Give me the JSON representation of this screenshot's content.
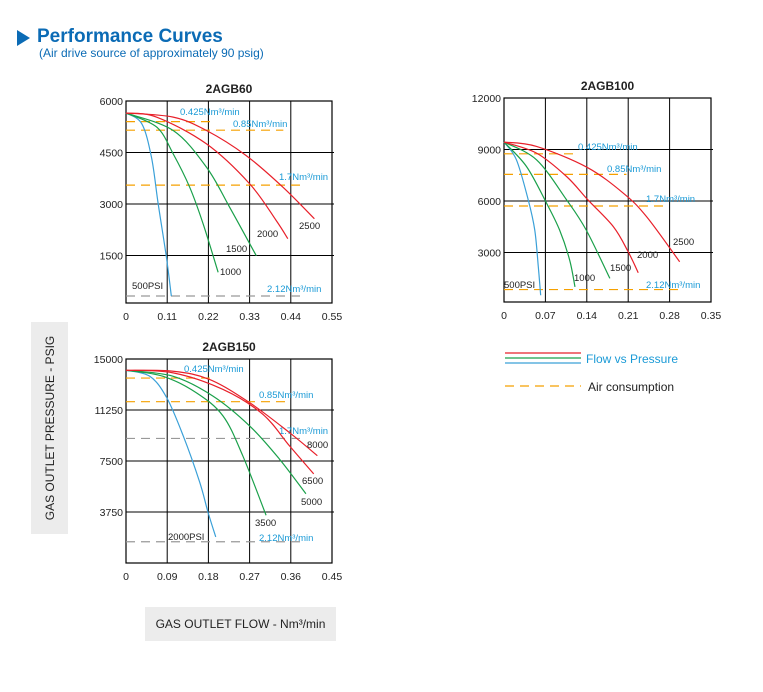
{
  "header": {
    "title": "Performance Curves",
    "subtitle": "(Air drive source of approximately 90 psig)",
    "icon": "triangle-right-icon"
  },
  "axis_labels": {
    "y": "GAS OUTLET PRESSURE - PSIG",
    "x": "GAS OUTLET FLOW - Nm³/min"
  },
  "legend": {
    "flow_label": "Flow vs Pressure",
    "air_label": "Air consumption"
  },
  "colors": {
    "brand": "#0b6bb5",
    "red": "#e8202a",
    "green": "#1aa04a",
    "blue": "#3aa0d8",
    "orange": "#f5a000",
    "gray": "#999999",
    "label_blue": "#1a9ad6"
  },
  "chart_data": [
    {
      "type": "line",
      "title": "2AGB60",
      "xlim": [
        0,
        0.55
      ],
      "ylim": [
        0,
        6000
      ],
      "grid": true,
      "xticks": [
        "0",
        "0.11",
        "0.22",
        "0.33",
        "0.44",
        "0.55"
      ],
      "yticks": [
        "1500",
        "3000",
        "4500",
        "6000"
      ],
      "series": [
        {
          "name": "500PSI",
          "color": "blue",
          "x": [
            0,
            0.042,
            0.068,
            0.086,
            0.108,
            0.121
          ],
          "y": [
            5650,
            5340,
            4360,
            3000,
            1440,
            320
          ]
        },
        {
          "name": "1000",
          "color": "green",
          "x": [
            0,
            0.082,
            0.126,
            0.17,
            0.206,
            0.246
          ],
          "y": [
            5650,
            5240,
            4460,
            3490,
            2420,
            1010
          ]
        },
        {
          "name": "1500",
          "color": "green",
          "x": [
            0,
            0.126,
            0.215,
            0.277,
            0.348
          ],
          "y": [
            5650,
            5140,
            4070,
            2900,
            1490
          ]
        },
        {
          "name": "2000",
          "color": "red",
          "x": [
            0,
            0.082,
            0.215,
            0.33,
            0.401,
            0.432
          ],
          "y": [
            5650,
            5530,
            4750,
            3590,
            2520,
            1990
          ]
        },
        {
          "name": "2500",
          "color": "red",
          "x": [
            0,
            0.126,
            0.215,
            0.321,
            0.419,
            0.503
          ],
          "y": [
            5650,
            5530,
            5140,
            4410,
            3490,
            2570
          ]
        }
      ],
      "air_lines": [
        {
          "name": "0.425Nm³/min",
          "y": 5400,
          "x_end": 0.232,
          "color": "orange"
        },
        {
          "name": "0.85Nm³/min",
          "y": 5150,
          "x_end": 0.42,
          "color": "orange"
        },
        {
          "name": "1.7Nm³/min",
          "y": 3550,
          "x_end": 0.476,
          "color": "orange"
        },
        {
          "name": "2.12Nm³/min",
          "y": 320,
          "x_end": 0.476,
          "color": "gray"
        }
      ]
    },
    {
      "type": "line",
      "title": "2AGB100",
      "xlim": [
        0,
        0.35
      ],
      "ylim": [
        0,
        12000
      ],
      "grid": true,
      "xticks": [
        "0",
        "0.07",
        "0.14",
        "0.21",
        "0.28",
        "0.35"
      ],
      "yticks": [
        "3000",
        "6000",
        "9000",
        "12000"
      ],
      "series": [
        {
          "name": "500PSI",
          "color": "blue",
          "x": [
            0,
            0.021,
            0.041,
            0.052,
            0.058,
            0.062
          ],
          "y": [
            9430,
            8400,
            6060,
            4310,
            2170,
            510
          ]
        },
        {
          "name": "1000",
          "color": "green",
          "x": [
            0,
            0.038,
            0.072,
            0.094,
            0.111,
            0.12
          ],
          "y": [
            9430,
            8010,
            5870,
            4310,
            2560,
            1000
          ]
        },
        {
          "name": "1500",
          "color": "green",
          "x": [
            0,
            0.055,
            0.106,
            0.139,
            0.179
          ],
          "y": [
            9430,
            8400,
            6060,
            4310,
            1490
          ]
        },
        {
          "name": "2000",
          "color": "red",
          "x": [
            0,
            0.055,
            0.106,
            0.142,
            0.185,
            0.21,
            0.227
          ],
          "y": [
            9430,
            8790,
            7420,
            6060,
            4500,
            3040,
            1820
          ]
        },
        {
          "name": "2500",
          "color": "red",
          "x": [
            0,
            0.055,
            0.14,
            0.202,
            0.241,
            0.297
          ],
          "y": [
            9430,
            9180,
            7970,
            6450,
            5090,
            2460
          ]
        }
      ],
      "air_lines": [
        {
          "name": "0.425Nm³/min",
          "y": 8750,
          "x_end": 0.12,
          "color": "orange"
        },
        {
          "name": "0.85Nm³/min",
          "y": 7550,
          "x_end": 0.207,
          "color": "orange"
        },
        {
          "name": "1.7Nm³/min",
          "y": 5710,
          "x_end": 0.269,
          "color": "orange"
        },
        {
          "name": "2.12Nm³/min",
          "y": 840,
          "x_end": 0.303,
          "color": "orange"
        }
      ]
    },
    {
      "type": "line",
      "title": "2AGB150",
      "xlim": [
        0,
        0.45
      ],
      "ylim": [
        0,
        15000
      ],
      "grid": true,
      "xticks": [
        "0",
        "0.09",
        "0.18",
        "0.27",
        "0.36",
        "0.45"
      ],
      "yticks": [
        "3750",
        "7500",
        "11250",
        "15000"
      ],
      "series": [
        {
          "name": "2000PSI",
          "color": "blue",
          "x": [
            0,
            0.052,
            0.089,
            0.125,
            0.161,
            0.179,
            0.196
          ],
          "y": [
            14170,
            13730,
            12150,
            9350,
            5940,
            3750,
            1920
          ]
        },
        {
          "name": "3500",
          "color": "green",
          "x": [
            0,
            0.081,
            0.154,
            0.212,
            0.255,
            0.306
          ],
          "y": [
            14170,
            13730,
            12510,
            10810,
            7890,
            3510
          ]
        },
        {
          "name": "5000",
          "color": "green",
          "x": [
            0,
            0.103,
            0.19,
            0.27,
            0.335,
            0.393
          ],
          "y": [
            14170,
            13730,
            12270,
            10080,
            7650,
            5090
          ]
        },
        {
          "name": "6500",
          "color": "red",
          "x": [
            0,
            0.103,
            0.212,
            0.299,
            0.357,
            0.41
          ],
          "y": [
            14170,
            13980,
            12760,
            10930,
            8620,
            6550
          ]
        },
        {
          "name": "8000",
          "color": "red",
          "x": [
            0,
            0.103,
            0.183,
            0.27,
            0.357,
            0.418
          ],
          "y": [
            14170,
            14100,
            13490,
            11790,
            9590,
            7890
          ]
        }
      ],
      "air_lines": [
        {
          "name": "0.425Nm³/min",
          "y": 13600,
          "x_end": 0.183,
          "color": "orange"
        },
        {
          "name": "0.85Nm³/min",
          "y": 11860,
          "x_end": 0.357,
          "color": "orange"
        },
        {
          "name": "1.7Nm³/min",
          "y": 9160,
          "x_end": 0.39,
          "color": "gray"
        },
        {
          "name": "2.12Nm³/min",
          "y": 1560,
          "x_end": 0.39,
          "color": "gray"
        }
      ]
    }
  ]
}
